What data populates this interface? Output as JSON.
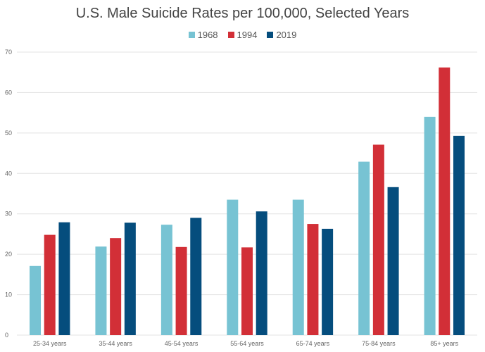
{
  "chart_data": {
    "type": "bar",
    "title": "U.S. Male Suicide Rates per 100,000, Selected Years",
    "categories": [
      "25-34 years",
      "35-44 years",
      "45-54 years",
      "55-64 years",
      "65-74 years",
      "75-84 years",
      "85+ years"
    ],
    "series": [
      {
        "name": "1968",
        "color": "#77c3d3",
        "values": [
          17.1,
          21.9,
          27.3,
          33.5,
          33.5,
          42.9,
          54.0
        ]
      },
      {
        "name": "1994",
        "color": "#d22f37",
        "values": [
          24.8,
          24.0,
          21.8,
          21.7,
          27.5,
          47.1,
          66.2
        ]
      },
      {
        "name": "2019",
        "color": "#054d7d",
        "values": [
          27.9,
          27.8,
          29.0,
          30.6,
          26.3,
          36.6,
          49.3
        ]
      }
    ],
    "yticks": [
      0,
      10,
      20,
      30,
      40,
      50,
      60,
      70
    ],
    "ylim": [
      0,
      70
    ],
    "grid": true,
    "legend_position": "top"
  }
}
